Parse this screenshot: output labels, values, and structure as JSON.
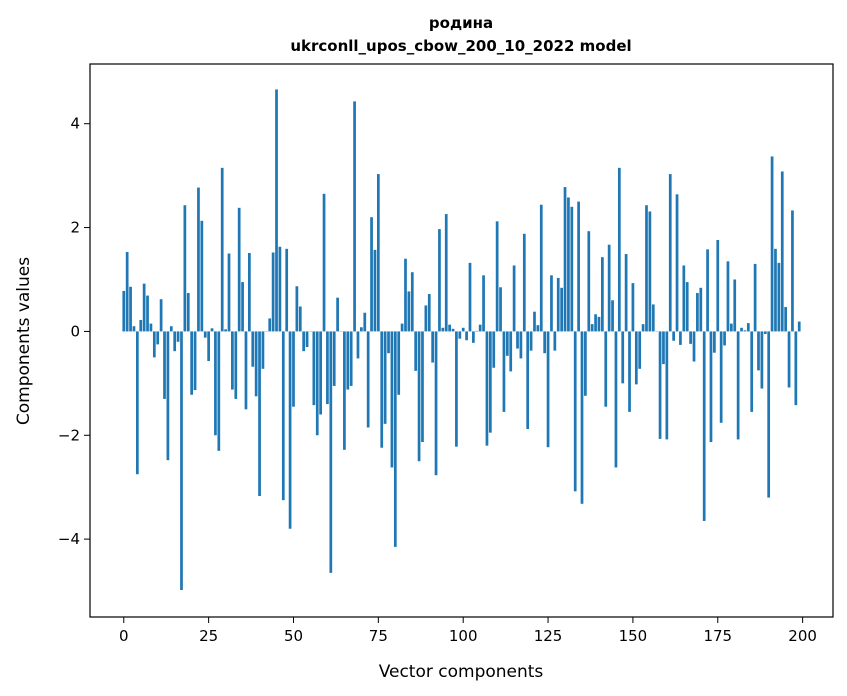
{
  "chart_data": {
    "type": "bar",
    "title": "родина",
    "subtitle": "ukrconll_upos_cbow_200_10_2022 model",
    "xlabel": "Vector components",
    "ylabel": "Components values",
    "xlim": [
      -9.95,
      208.95
    ],
    "ylim": [
      -5.5,
      5.15
    ],
    "xticks": [
      0,
      25,
      50,
      75,
      100,
      125,
      150,
      175,
      200
    ],
    "yticks": [
      -4,
      -2,
      0,
      2,
      4
    ],
    "ytick_labels": [
      "−4",
      "−2",
      "0",
      "2",
      "4"
    ],
    "grid": false,
    "bar_color": "#1f77b4",
    "x": [
      0,
      1,
      2,
      3,
      4,
      5,
      6,
      7,
      8,
      9,
      10,
      11,
      12,
      13,
      14,
      15,
      16,
      17,
      18,
      19,
      20,
      21,
      22,
      23,
      24,
      25,
      26,
      27,
      28,
      29,
      30,
      31,
      32,
      33,
      34,
      35,
      36,
      37,
      38,
      39,
      40,
      41,
      42,
      43,
      44,
      45,
      46,
      47,
      48,
      49,
      50,
      51,
      52,
      53,
      54,
      55,
      56,
      57,
      58,
      59,
      60,
      61,
      62,
      63,
      64,
      65,
      66,
      67,
      68,
      69,
      70,
      71,
      72,
      73,
      74,
      75,
      76,
      77,
      78,
      79,
      80,
      81,
      82,
      83,
      84,
      85,
      86,
      87,
      88,
      89,
      90,
      91,
      92,
      93,
      94,
      95,
      96,
      97,
      98,
      99,
      100,
      101,
      102,
      103,
      104,
      105,
      106,
      107,
      108,
      109,
      110,
      111,
      112,
      113,
      114,
      115,
      116,
      117,
      118,
      119,
      120,
      121,
      122,
      123,
      124,
      125,
      126,
      127,
      128,
      129,
      130,
      131,
      132,
      133,
      134,
      135,
      136,
      137,
      138,
      139,
      140,
      141,
      142,
      143,
      144,
      145,
      146,
      147,
      148,
      149,
      150,
      151,
      152,
      153,
      154,
      155,
      156,
      157,
      158,
      159,
      160,
      161,
      162,
      163,
      164,
      165,
      166,
      167,
      168,
      169,
      170,
      171,
      172,
      173,
      174,
      175,
      176,
      177,
      178,
      179,
      180,
      181,
      182,
      183,
      184,
      185,
      186,
      187,
      188,
      189,
      190,
      191,
      192,
      193,
      194,
      195,
      196,
      197,
      198,
      199
    ],
    "values": [
      0.78,
      1.53,
      0.86,
      0.1,
      -2.75,
      0.22,
      0.92,
      0.69,
      0.15,
      -0.5,
      -0.25,
      0.62,
      -1.3,
      -2.48,
      0.1,
      -0.38,
      -0.2,
      -4.98,
      2.43,
      0.74,
      -1.22,
      -1.13,
      2.77,
      2.13,
      -0.12,
      -0.57,
      0.06,
      -2.0,
      -2.3,
      3.15,
      0.04,
      1.5,
      -1.12,
      -1.3,
      2.38,
      0.95,
      -1.5,
      1.51,
      -0.68,
      -1.25,
      -3.17,
      -0.72,
      0.0,
      0.25,
      1.52,
      4.66,
      1.63,
      -3.25,
      1.59,
      -3.8,
      -1.45,
      0.87,
      0.48,
      -0.38,
      -0.3,
      0.0,
      -1.42,
      -2.0,
      -1.6,
      2.65,
      -1.4,
      -4.65,
      -1.05,
      0.65,
      0.0,
      -2.28,
      -1.12,
      -1.05,
      4.43,
      -0.52,
      0.08,
      0.36,
      -1.85,
      2.2,
      1.57,
      3.03,
      -2.24,
      -1.78,
      -0.42,
      -2.62,
      -4.15,
      -1.22,
      0.15,
      1.4,
      0.77,
      1.14,
      -0.76,
      -2.5,
      -2.13,
      0.5,
      0.72,
      -0.6,
      -2.77,
      1.97,
      0.07,
      2.26,
      0.13,
      0.05,
      -2.22,
      -0.14,
      0.07,
      -0.17,
      1.32,
      -0.22,
      0.01,
      0.13,
      1.08,
      -2.2,
      -1.95,
      -0.7,
      2.12,
      0.85,
      -1.55,
      -0.47,
      -0.77,
      1.27,
      -0.33,
      -0.52,
      1.88,
      -1.88,
      -0.37,
      0.38,
      0.12,
      2.44,
      -0.42,
      -2.23,
      1.08,
      -0.37,
      1.03,
      0.84,
      2.78,
      2.58,
      2.4,
      -3.08,
      2.5,
      -3.32,
      -1.24,
      1.93,
      0.14,
      0.33,
      0.28,
      1.43,
      -1.45,
      1.67,
      0.6,
      -2.62,
      3.15,
      -1.0,
      1.49,
      -1.55,
      0.93,
      -1.02,
      -0.72,
      0.14,
      2.43,
      2.31,
      0.52,
      0.0,
      -2.07,
      -0.63,
      -2.08,
      3.03,
      -0.18,
      2.64,
      -0.26,
      1.27,
      0.95,
      -0.24,
      -0.58,
      0.74,
      0.84,
      -3.65,
      1.58,
      -2.13,
      -0.41,
      1.76,
      -1.76,
      -0.27,
      1.35,
      0.15,
      1.0,
      -2.08,
      0.07,
      0.02,
      0.16,
      -1.55,
      1.3,
      -0.75,
      -1.1,
      -0.05,
      -3.2,
      3.37,
      1.59,
      1.32,
      3.08,
      0.47,
      -1.08,
      2.33,
      -1.42,
      0.19
    ]
  }
}
